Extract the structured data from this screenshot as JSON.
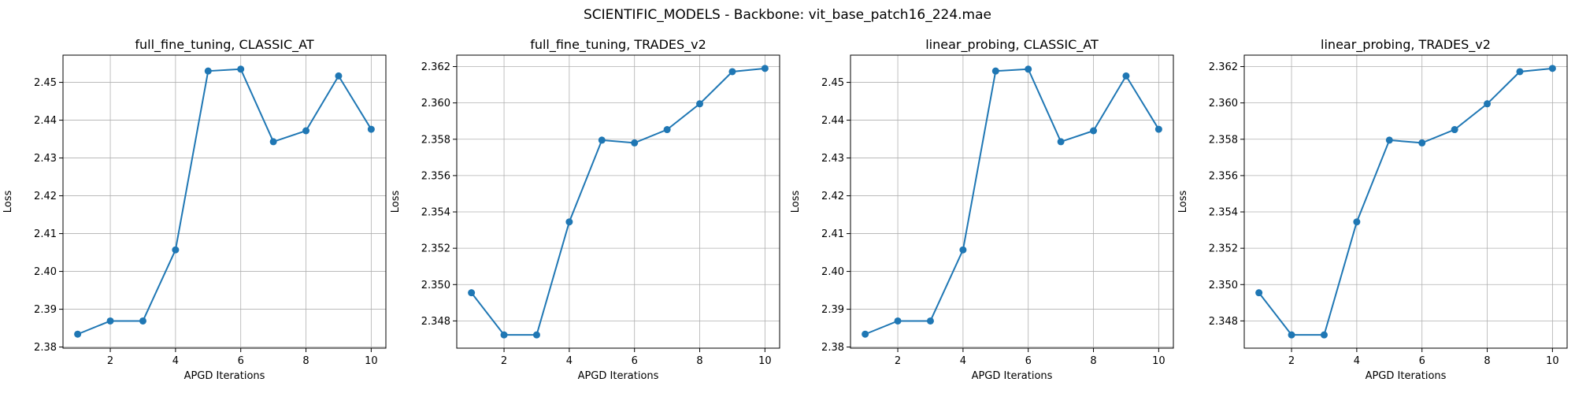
{
  "figure": {
    "suptitle": "SCIENTIFIC_MODELS - Backbone: vit_base_patch16_224.mae"
  },
  "chart_data": [
    {
      "type": "line",
      "title": "full_fine_tuning, CLASSIC_AT",
      "xlabel": "APGD Iterations",
      "ylabel": "Loss",
      "x": [
        1,
        2,
        3,
        4,
        5,
        6,
        7,
        8,
        9,
        10
      ],
      "y": [
        2.3834,
        2.3869,
        2.3869,
        2.4057,
        2.453,
        2.4535,
        2.4343,
        2.4372,
        2.4517,
        2.4376
      ],
      "xlim": [
        0.55,
        10.45
      ],
      "ylim": [
        2.3797,
        2.4572
      ],
      "xticks": [
        2,
        4,
        6,
        8,
        10
      ],
      "yticks": [
        2.38,
        2.39,
        2.4,
        2.41,
        2.42,
        2.43,
        2.44,
        2.45
      ],
      "ytick_decimals": 2,
      "grid": true,
      "color": "#1f77b4",
      "marker": "circle"
    },
    {
      "type": "line",
      "title": "full_fine_tuning, TRADES_v2",
      "xlabel": "APGD Iterations",
      "ylabel": "Loss",
      "x": [
        1,
        2,
        3,
        4,
        5,
        6,
        7,
        8,
        9,
        10
      ],
      "y": [
        2.34955,
        2.34723,
        2.34723,
        2.35345,
        2.35795,
        2.3578,
        2.35853,
        2.35995,
        2.36172,
        2.3619
      ],
      "xlim": [
        0.55,
        10.45
      ],
      "ylim": [
        2.3465,
        2.36263
      ],
      "xticks": [
        2,
        4,
        6,
        8,
        10
      ],
      "yticks": [
        2.348,
        2.35,
        2.352,
        2.354,
        2.356,
        2.358,
        2.36,
        2.362
      ],
      "ytick_decimals": 3,
      "grid": true,
      "color": "#1f77b4",
      "marker": "circle"
    },
    {
      "type": "line",
      "title": "linear_probing, CLASSIC_AT",
      "xlabel": "APGD Iterations",
      "ylabel": "Loss",
      "x": [
        1,
        2,
        3,
        4,
        5,
        6,
        7,
        8,
        9,
        10
      ],
      "y": [
        2.3834,
        2.3869,
        2.3869,
        2.4057,
        2.453,
        2.4535,
        2.4343,
        2.4372,
        2.4517,
        2.4376
      ],
      "xlim": [
        0.55,
        10.45
      ],
      "ylim": [
        2.3797,
        2.4572
      ],
      "xticks": [
        2,
        4,
        6,
        8,
        10
      ],
      "yticks": [
        2.38,
        2.39,
        2.4,
        2.41,
        2.42,
        2.43,
        2.44,
        2.45
      ],
      "ytick_decimals": 2,
      "grid": true,
      "color": "#1f77b4",
      "marker": "circle"
    },
    {
      "type": "line",
      "title": "linear_probing, TRADES_v2",
      "xlabel": "APGD Iterations",
      "ylabel": "Loss",
      "x": [
        1,
        2,
        3,
        4,
        5,
        6,
        7,
        8,
        9,
        10
      ],
      "y": [
        2.34955,
        2.34723,
        2.34723,
        2.35345,
        2.35795,
        2.3578,
        2.35853,
        2.35995,
        2.36172,
        2.3619
      ],
      "xlim": [
        0.55,
        10.45
      ],
      "ylim": [
        2.3465,
        2.36263
      ],
      "xticks": [
        2,
        4,
        6,
        8,
        10
      ],
      "yticks": [
        2.348,
        2.35,
        2.352,
        2.354,
        2.356,
        2.358,
        2.36,
        2.362
      ],
      "ytick_decimals": 3,
      "grid": true,
      "color": "#1f77b4",
      "marker": "circle"
    }
  ]
}
